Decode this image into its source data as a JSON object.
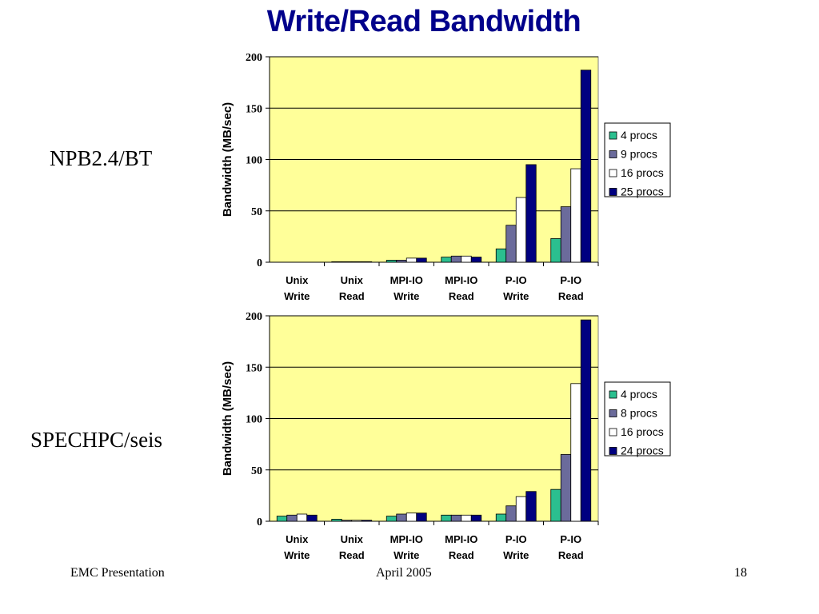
{
  "slide": {
    "title": "Write/Read Bandwidth",
    "footer_left": "EMC Presentation",
    "footer_center": "April 2005",
    "footer_right": "18"
  },
  "colors": {
    "plot_bg": "#FFFF99",
    "series": [
      "#2BBF8F",
      "#6B6B9B",
      "#FFFFFF",
      "#000080"
    ]
  },
  "chart_data": [
    {
      "label": "NPB2.4/BT",
      "type": "bar",
      "ylabel": "Bandwidth (MB/sec)",
      "ylim": [
        0,
        200
      ],
      "yticks": [
        0,
        50,
        100,
        150,
        200
      ],
      "grid": true,
      "legend_position": "right",
      "categories": [
        [
          "Unix",
          "Write"
        ],
        [
          "Unix",
          "Read"
        ],
        [
          "MPI-IO",
          "Write"
        ],
        [
          "MPI-IO",
          "Read"
        ],
        [
          "P-IO",
          "Write"
        ],
        [
          "P-IO",
          "Read"
        ]
      ],
      "series": [
        {
          "name": "4 procs",
          "values": [
            0,
            0.5,
            2,
            5,
            13,
            23
          ]
        },
        {
          "name": "9 procs",
          "values": [
            0,
            0.5,
            2,
            6,
            36,
            54
          ]
        },
        {
          "name": "16 procs",
          "values": [
            0,
            0.5,
            4,
            6,
            63,
            91
          ]
        },
        {
          "name": "25 procs",
          "values": [
            0,
            0.5,
            4,
            5,
            95,
            187
          ]
        }
      ]
    },
    {
      "label": "SPECHPC/seis",
      "type": "bar",
      "ylabel": "Bandwidth (MB/sec)",
      "ylim": [
        0,
        200
      ],
      "yticks": [
        0,
        50,
        100,
        150,
        200
      ],
      "grid": true,
      "legend_position": "right",
      "categories": [
        [
          "Unix",
          "Write"
        ],
        [
          "Unix",
          "Read"
        ],
        [
          "MPI-IO",
          "Write"
        ],
        [
          "MPI-IO",
          "Read"
        ],
        [
          "P-IO",
          "Write"
        ],
        [
          "P-IO",
          "Read"
        ]
      ],
      "series": [
        {
          "name": "4 procs",
          "values": [
            5,
            2,
            5,
            6,
            7,
            31
          ]
        },
        {
          "name": "8 procs",
          "values": [
            6,
            1,
            7,
            6,
            15,
            65
          ]
        },
        {
          "name": "16 procs",
          "values": [
            7,
            1,
            8,
            6,
            24,
            134
          ]
        },
        {
          "name": "24 procs",
          "values": [
            6,
            1,
            8,
            6,
            29,
            196
          ]
        }
      ]
    }
  ]
}
